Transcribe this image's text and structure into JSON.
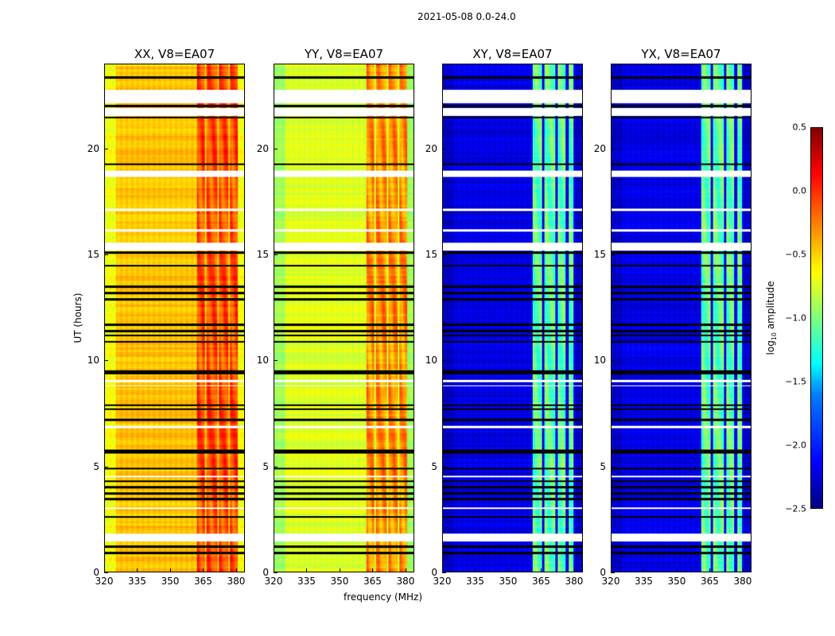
{
  "chart_data": {
    "type": "heatmap",
    "suptitle": "2021-05-08 0.0-24.0",
    "xlabel": "frequency (MHz)",
    "ylabel": "UT (hours)",
    "xlim": [
      320,
      384
    ],
    "ylim": [
      0,
      24
    ],
    "xticks": [
      "320",
      "335",
      "350",
      "365",
      "380"
    ],
    "xtick_values": [
      320,
      335,
      350,
      365,
      380
    ],
    "yticks": [
      "0",
      "5",
      "10",
      "15",
      "20"
    ],
    "ytick_values": [
      0,
      5,
      10,
      15,
      20
    ],
    "colormap": "jet",
    "colorbar": {
      "label_main": "log",
      "label_sub": "10",
      "label_rest": " amplitude",
      "range": [
        -2.5,
        0.5
      ],
      "ticks": [
        "0.5",
        "0.0",
        "−0.5",
        "−1.0",
        "−1.5",
        "−2.0",
        "−2.5"
      ],
      "tick_values": [
        0.5,
        0.0,
        -0.5,
        -1.0,
        -1.5,
        -2.0,
        -2.5
      ]
    },
    "panels": [
      {
        "title": "XX, V8=EA07",
        "base_level": -0.45,
        "band_level": -0.1,
        "band_mhz": [
          362,
          381
        ],
        "edge_level": -0.65
      },
      {
        "title": "YY, V8=EA07",
        "base_level": -0.72,
        "band_level": -0.3,
        "band_mhz": [
          362,
          381
        ],
        "edge_level": -0.9
      },
      {
        "title": "XY, V8=EA07",
        "base_level": -2.2,
        "band_level": -1.1,
        "band_mhz": [
          361,
          380
        ],
        "edge_level": -2.3
      },
      {
        "title": "YX, V8=EA07",
        "base_level": -2.2,
        "band_level": -1.1,
        "band_mhz": [
          361,
          380
        ],
        "edge_level": -2.3
      }
    ],
    "flagged_hours": [
      [
        22.2,
        22.8
      ],
      [
        21.6,
        21.95
      ],
      [
        18.7,
        19.0
      ],
      [
        15.2,
        15.6
      ],
      [
        1.45,
        1.8
      ],
      [
        9.0,
        9.1
      ],
      [
        8.8,
        8.85
      ],
      [
        17.1,
        17.2
      ],
      [
        16.1,
        16.2
      ],
      [
        6.8,
        6.9
      ],
      [
        4.5,
        4.55
      ],
      [
        3.0,
        3.05
      ]
    ],
    "gap_lines_hours": [
      23.4,
      22.05,
      21.5,
      19.3,
      15.1,
      14.5,
      13.5,
      13.2,
      12.9,
      11.7,
      11.4,
      11.2,
      10.9,
      9.5,
      9.4,
      7.9,
      7.7,
      7.2,
      5.75,
      5.65,
      4.9,
      4.3,
      4.0,
      3.7,
      3.45,
      2.6,
      1.2,
      0.9
    ]
  }
}
